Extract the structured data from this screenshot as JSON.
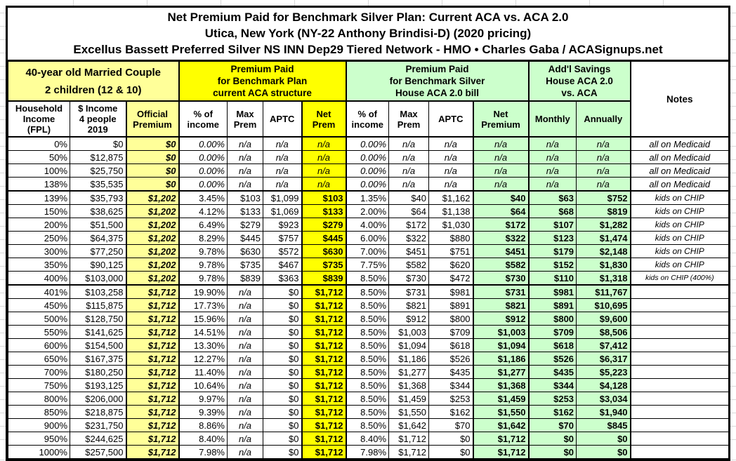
{
  "chart_data": {
    "type": "table",
    "title_lines": [
      "Net Premium Paid for Benchmark Silver Plan: Current ACA vs. ACA 2.0",
      "Utica, New York (NY-22 Anthony Brindisi-D) (2020 pricing)",
      "Excellus Bassett Preferred Silver NS INN Dep29 Tiered Network - HMO • Charles Gaba / ACASignups.net"
    ],
    "group_headers": {
      "household": "40-year old Married Couple\n2 children (12 & 10)",
      "aca": "Premium Paid\nfor Benchmark Plan\ncurrent ACA structure",
      "aca2": "Premium Paid\nfor Benchmark Silver\nHouse ACA 2.0 bill",
      "savings": "Add'l Savings\nHouse ACA 2.0\nvs. ACA",
      "notes": "Notes"
    },
    "columns": [
      "Household\nIncome\n(FPL)",
      "$ Income\n4 people\n2019",
      "Official\nPremium",
      "% of\nincome",
      "Max\nPrem",
      "APTC",
      "Net\nPrem",
      "% of\nincome",
      "Max\nPrem",
      "APTC",
      "Net\nPremium",
      "Monthly",
      "Annually"
    ],
    "colors": {
      "light_yellow": "#FFFF99",
      "bright_yellow": "#FFFF00",
      "light_green": "#CCFFCC",
      "border": "#000000"
    },
    "rows": [
      {
        "section": "medicaid",
        "divider_below": false,
        "values": [
          "0%",
          "$0",
          "$0",
          "0.00%",
          "n/a",
          "n/a",
          "n/a",
          "0.00%",
          "n/a",
          "n/a",
          "n/a",
          "n/a",
          "n/a",
          "all on Medicaid"
        ]
      },
      {
        "section": "medicaid",
        "divider_below": false,
        "values": [
          "50%",
          "$12,875",
          "$0",
          "0.00%",
          "n/a",
          "n/a",
          "n/a",
          "0.00%",
          "n/a",
          "n/a",
          "n/a",
          "n/a",
          "n/a",
          "all on Medicaid"
        ]
      },
      {
        "section": "medicaid",
        "divider_below": false,
        "values": [
          "100%",
          "$25,750",
          "$0",
          "0.00%",
          "n/a",
          "n/a",
          "n/a",
          "0.00%",
          "n/a",
          "n/a",
          "n/a",
          "n/a",
          "n/a",
          "all on Medicaid"
        ]
      },
      {
        "section": "medicaid",
        "divider_below": true,
        "values": [
          "138%",
          "$35,535",
          "$0",
          "0.00%",
          "n/a",
          "n/a",
          "n/a",
          "0.00%",
          "n/a",
          "n/a",
          "n/a",
          "n/a",
          "n/a",
          "all on Medicaid"
        ]
      },
      {
        "section": "chip",
        "divider_below": false,
        "values": [
          "139%",
          "$35,793",
          "$1,202",
          "3.45%",
          "$103",
          "$1,099",
          "$103",
          "1.35%",
          "$40",
          "$1,162",
          "$40",
          "$63",
          "$752",
          "kids on CHIP"
        ]
      },
      {
        "section": "chip",
        "divider_below": false,
        "values": [
          "150%",
          "$38,625",
          "$1,202",
          "4.12%",
          "$133",
          "$1,069",
          "$133",
          "2.00%",
          "$64",
          "$1,138",
          "$64",
          "$68",
          "$819",
          "kids on CHIP"
        ]
      },
      {
        "section": "chip",
        "divider_below": false,
        "values": [
          "200%",
          "$51,500",
          "$1,202",
          "6.49%",
          "$279",
          "$923",
          "$279",
          "4.00%",
          "$172",
          "$1,030",
          "$172",
          "$107",
          "$1,282",
          "kids on CHIP"
        ]
      },
      {
        "section": "chip",
        "divider_below": false,
        "values": [
          "250%",
          "$64,375",
          "$1,202",
          "8.29%",
          "$445",
          "$757",
          "$445",
          "6.00%",
          "$322",
          "$880",
          "$322",
          "$123",
          "$1,474",
          "kids on CHIP"
        ]
      },
      {
        "section": "chip",
        "divider_below": false,
        "values": [
          "300%",
          "$77,250",
          "$1,202",
          "9.78%",
          "$630",
          "$572",
          "$630",
          "7.00%",
          "$451",
          "$751",
          "$451",
          "$179",
          "$2,148",
          "kids on CHIP"
        ]
      },
      {
        "section": "chip",
        "divider_below": false,
        "values": [
          "350%",
          "$90,125",
          "$1,202",
          "9.78%",
          "$735",
          "$467",
          "$735",
          "7.75%",
          "$582",
          "$620",
          "$582",
          "$152",
          "$1,830",
          "kids on CHIP"
        ]
      },
      {
        "section": "chip",
        "divider_below": true,
        "values": [
          "400%",
          "$103,000",
          "$1,202",
          "9.78%",
          "$839",
          "$363",
          "$839",
          "8.50%",
          "$730",
          "$472",
          "$730",
          "$110",
          "$1,318",
          "kids on CHIP (400%)"
        ]
      },
      {
        "section": "full",
        "divider_below": false,
        "values": [
          "401%",
          "$103,258",
          "$1,712",
          "19.90%",
          "n/a",
          "$0",
          "$1,712",
          "8.50%",
          "$731",
          "$981",
          "$731",
          "$981",
          "$11,767",
          ""
        ]
      },
      {
        "section": "full",
        "divider_below": false,
        "values": [
          "450%",
          "$115,875",
          "$1,712",
          "17.73%",
          "n/a",
          "$0",
          "$1,712",
          "8.50%",
          "$821",
          "$891",
          "$821",
          "$891",
          "$10,695",
          ""
        ]
      },
      {
        "section": "full",
        "divider_below": false,
        "values": [
          "500%",
          "$128,750",
          "$1,712",
          "15.96%",
          "n/a",
          "$0",
          "$1,712",
          "8.50%",
          "$912",
          "$800",
          "$912",
          "$800",
          "$9,600",
          ""
        ]
      },
      {
        "section": "full",
        "divider_below": false,
        "values": [
          "550%",
          "$141,625",
          "$1,712",
          "14.51%",
          "n/a",
          "$0",
          "$1,712",
          "8.50%",
          "$1,003",
          "$709",
          "$1,003",
          "$709",
          "$8,506",
          ""
        ]
      },
      {
        "section": "full",
        "divider_below": false,
        "values": [
          "600%",
          "$154,500",
          "$1,712",
          "13.30%",
          "n/a",
          "$0",
          "$1,712",
          "8.50%",
          "$1,094",
          "$618",
          "$1,094",
          "$618",
          "$7,412",
          ""
        ]
      },
      {
        "section": "full",
        "divider_below": false,
        "values": [
          "650%",
          "$167,375",
          "$1,712",
          "12.27%",
          "n/a",
          "$0",
          "$1,712",
          "8.50%",
          "$1,186",
          "$526",
          "$1,186",
          "$526",
          "$6,317",
          ""
        ]
      },
      {
        "section": "full",
        "divider_below": false,
        "values": [
          "700%",
          "$180,250",
          "$1,712",
          "11.40%",
          "n/a",
          "$0",
          "$1,712",
          "8.50%",
          "$1,277",
          "$435",
          "$1,277",
          "$435",
          "$5,223",
          ""
        ]
      },
      {
        "section": "full",
        "divider_below": false,
        "values": [
          "750%",
          "$193,125",
          "$1,712",
          "10.64%",
          "n/a",
          "$0",
          "$1,712",
          "8.50%",
          "$1,368",
          "$344",
          "$1,368",
          "$344",
          "$4,128",
          ""
        ]
      },
      {
        "section": "full",
        "divider_below": false,
        "values": [
          "800%",
          "$206,000",
          "$1,712",
          "9.97%",
          "n/a",
          "$0",
          "$1,712",
          "8.50%",
          "$1,459",
          "$253",
          "$1,459",
          "$253",
          "$3,034",
          ""
        ]
      },
      {
        "section": "full",
        "divider_below": false,
        "values": [
          "850%",
          "$218,875",
          "$1,712",
          "9.39%",
          "n/a",
          "$0",
          "$1,712",
          "8.50%",
          "$1,550",
          "$162",
          "$1,550",
          "$162",
          "$1,940",
          ""
        ]
      },
      {
        "section": "full",
        "divider_below": false,
        "values": [
          "900%",
          "$231,750",
          "$1,712",
          "8.86%",
          "n/a",
          "$0",
          "$1,712",
          "8.50%",
          "$1,642",
          "$70",
          "$1,642",
          "$70",
          "$845",
          ""
        ]
      },
      {
        "section": "full",
        "divider_below": false,
        "values": [
          "950%",
          "$244,625",
          "$1,712",
          "8.40%",
          "n/a",
          "$0",
          "$1,712",
          "8.40%",
          "$1,712",
          "$0",
          "$1,712",
          "$0",
          "$0",
          ""
        ]
      },
      {
        "section": "full",
        "divider_below": false,
        "values": [
          "1000%",
          "$257,500",
          "$1,712",
          "7.98%",
          "n/a",
          "$0",
          "$1,712",
          "7.98%",
          "$1,712",
          "$0",
          "$1,712",
          "$0",
          "$0",
          ""
        ]
      }
    ]
  }
}
